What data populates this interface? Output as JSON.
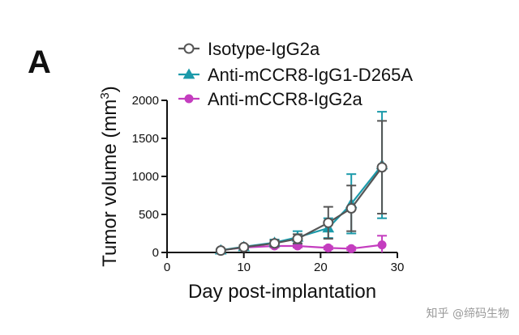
{
  "panel_label": "A",
  "watermark": "知乎 @缔码生物",
  "colors": {
    "Isotype-IgG2a": "#555555",
    "Anti-mCCR8-IgG1-D265A": "#1b9aaa",
    "Anti-mCCR8-IgG2a": "#c43dbf"
  },
  "chart_data": {
    "type": "line",
    "title": "",
    "xlabel": "Day post-implantation",
    "ylabel": "Tumor volume (mm",
    "ylabel_sup": "3",
    "ylabel_close": ")",
    "xlim": [
      0,
      30
    ],
    "ylim": [
      0,
      2000
    ],
    "xticks": [
      0,
      10,
      20,
      30
    ],
    "yticks": [
      0,
      500,
      1000,
      1500,
      2000
    ],
    "grid": false,
    "legend_position": "top",
    "series": [
      {
        "name": "Isotype-IgG2a",
        "marker": "open-circle",
        "x": [
          7,
          10,
          14,
          17,
          21,
          24,
          28
        ],
        "y": [
          25,
          70,
          120,
          180,
          390,
          580,
          1120
        ],
        "err": [
          15,
          25,
          40,
          60,
          210,
          300,
          610
        ]
      },
      {
        "name": "Anti-mCCR8-IgG1-D265A",
        "marker": "triangle",
        "x": [
          7,
          10,
          14,
          17,
          21,
          24,
          28
        ],
        "y": [
          30,
          75,
          130,
          200,
          320,
          640,
          1150
        ],
        "err": [
          15,
          20,
          40,
          80,
          130,
          390,
          700
        ]
      },
      {
        "name": "Anti-mCCR8-IgG2a",
        "marker": "filled-circle",
        "x": [
          7,
          10,
          14,
          17,
          21,
          24,
          28
        ],
        "y": [
          30,
          65,
          85,
          85,
          60,
          50,
          100
        ],
        "err": [
          10,
          15,
          20,
          20,
          20,
          20,
          120
        ]
      }
    ]
  }
}
